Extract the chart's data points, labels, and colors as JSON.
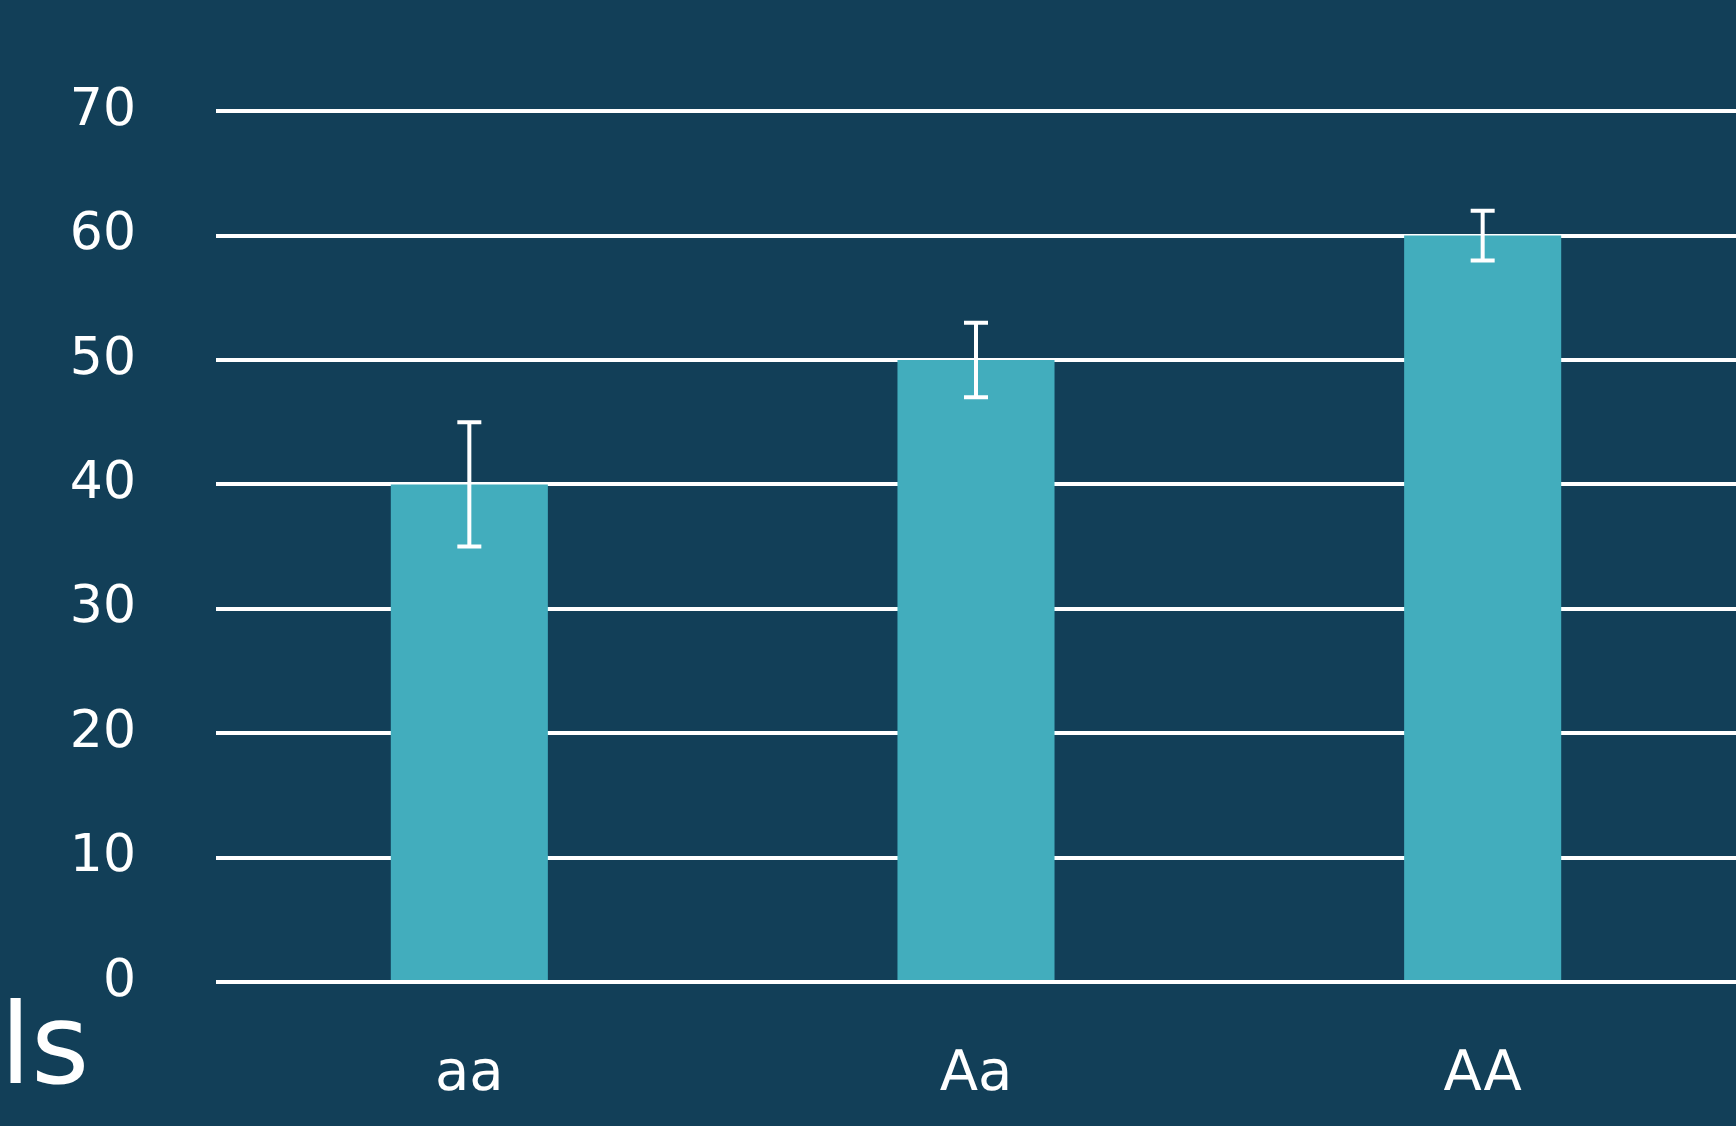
{
  "chart_data": {
    "type": "bar",
    "categories": [
      "aa",
      "Aa",
      "AA"
    ],
    "values": [
      40,
      50,
      60
    ],
    "errors": [
      5,
      3,
      2
    ],
    "color": "#42adbd",
    "ylim": [
      0,
      70
    ],
    "yticks": [
      0,
      10,
      20,
      30,
      40,
      50,
      60,
      70
    ],
    "grid": "y",
    "legend": false,
    "annotations": [
      "ls"
    ]
  }
}
